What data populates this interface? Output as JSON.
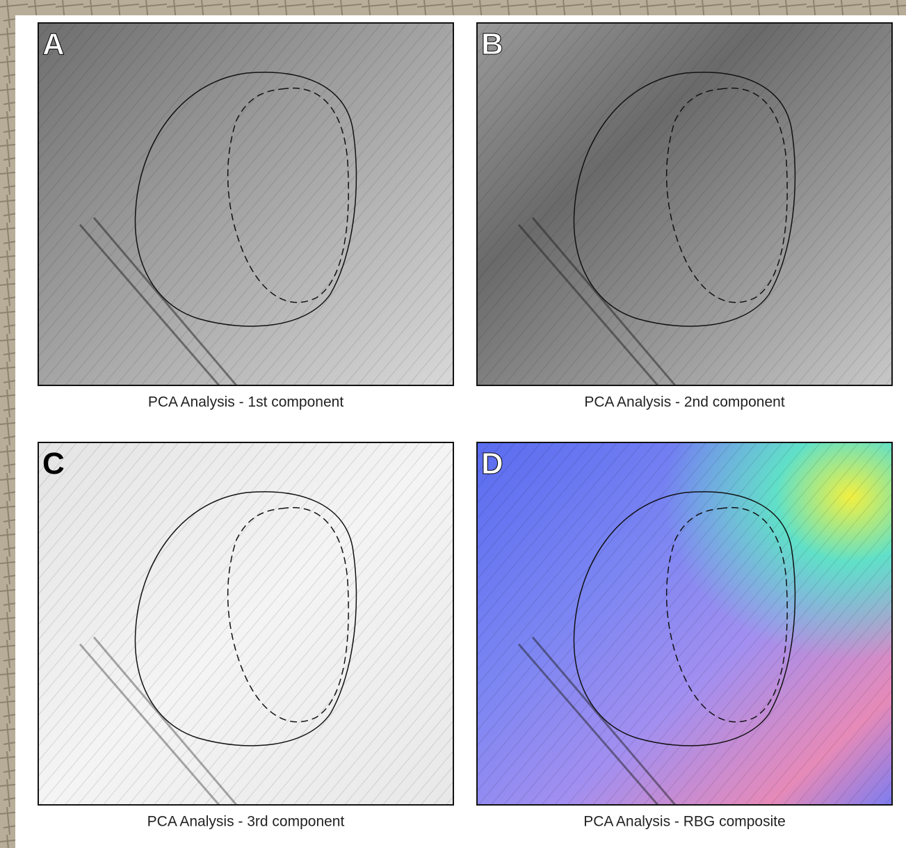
{
  "panels": [
    {
      "letter": "A",
      "caption": "PCA Analysis - 1st component"
    },
    {
      "letter": "B",
      "caption": "PCA Analysis - 2nd component"
    },
    {
      "letter": "C",
      "caption": "PCA Analysis - 3rd component"
    },
    {
      "letter": "D",
      "caption": "PCA Analysis - RBG composite"
    }
  ]
}
